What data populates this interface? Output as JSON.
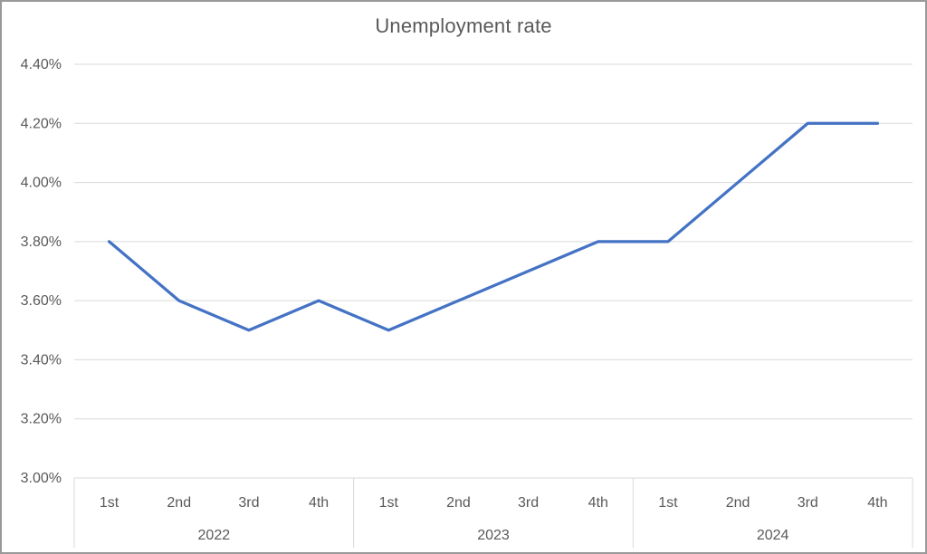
{
  "chart_data": {
    "type": "line",
    "title": "Unemployment rate",
    "legend": "none",
    "grid": "horizontal",
    "y_axis": {
      "min": 3.0,
      "max": 4.4,
      "tick_step": 0.2,
      "ticks": [
        {
          "label": "4.40%",
          "value": 4.4
        },
        {
          "label": "4.20%",
          "value": 4.2
        },
        {
          "label": "4.00%",
          "value": 4.0
        },
        {
          "label": "3.80%",
          "value": 3.8
        },
        {
          "label": "3.60%",
          "value": 3.6
        },
        {
          "label": "3.40%",
          "value": 3.4
        },
        {
          "label": "3.20%",
          "value": 3.2
        },
        {
          "label": "3.00%",
          "value": 3.0
        }
      ]
    },
    "x_axis": {
      "year_groups": [
        {
          "year": "2022",
          "quarters": [
            "1st",
            "2nd",
            "3rd",
            "4th"
          ]
        },
        {
          "year": "2023",
          "quarters": [
            "1st",
            "2nd",
            "3rd",
            "4th"
          ]
        },
        {
          "year": "2024",
          "quarters": [
            "1st",
            "2nd",
            "3rd",
            "4th"
          ]
        }
      ]
    },
    "series": [
      {
        "name": "Unemployment rate",
        "values_pct": [
          3.8,
          3.6,
          3.5,
          3.6,
          3.5,
          3.6,
          3.7,
          3.8,
          3.8,
          4.0,
          4.2,
          4.2
        ]
      }
    ],
    "colors": {
      "line": "#4472C4",
      "gridline": "#D9D9D9",
      "axis_band_border": "#D9D9D9",
      "axis_text": "#595959",
      "title_text": "#595959",
      "frame_border": "#999999",
      "background": "#FFFFFF"
    }
  }
}
